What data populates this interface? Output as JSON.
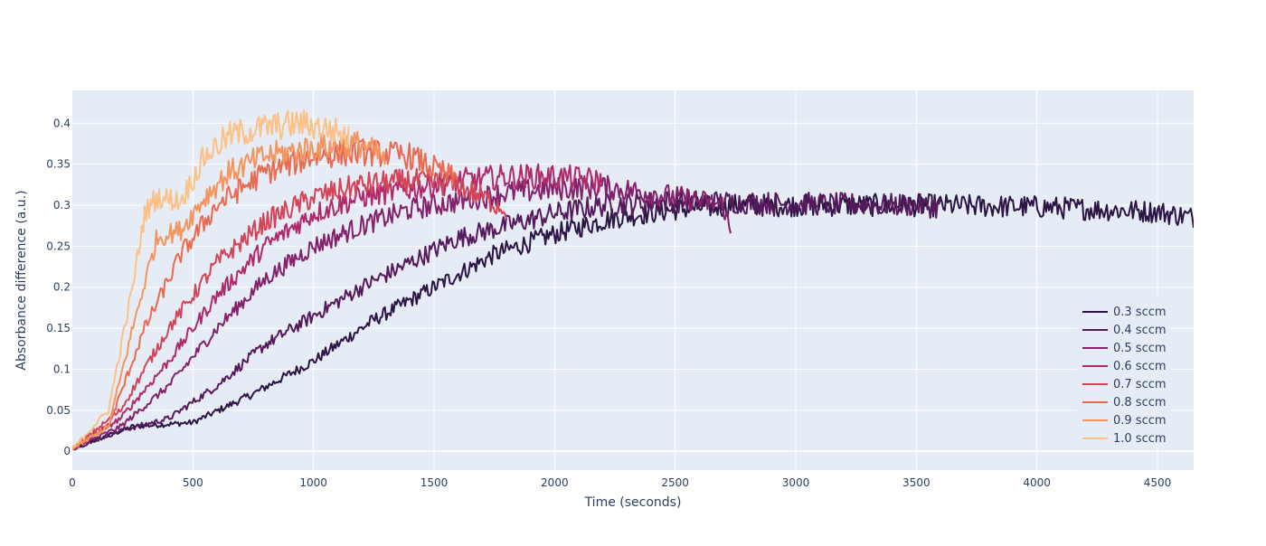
{
  "chart_data": {
    "type": "line",
    "title": "",
    "xlabel": "Time (seconds)",
    "ylabel": "Absorbance difference (a.u.)",
    "xlim": [
      0,
      4650
    ],
    "ylim": [
      -0.023,
      0.44
    ],
    "xticks": [
      0,
      500,
      1000,
      1500,
      2000,
      2500,
      3000,
      3500,
      4000,
      4500
    ],
    "yticks": [
      0,
      0.05,
      0.1,
      0.15,
      0.2,
      0.25,
      0.3,
      0.35,
      0.4
    ],
    "grid": true,
    "legend_position": "bottom-right",
    "background": "#e5ecf6",
    "series": [
      {
        "name": "0.3 sccm",
        "color": "#2c1444",
        "x": [
          0,
          250,
          500,
          750,
          1000,
          1250,
          1500,
          1750,
          2000,
          2250,
          2500,
          2750,
          3000,
          3500,
          4000,
          4500,
          4650
        ],
        "y": [
          0.003,
          0.03,
          0.035,
          0.07,
          0.11,
          0.16,
          0.2,
          0.24,
          0.265,
          0.285,
          0.295,
          0.3,
          0.3,
          0.3,
          0.298,
          0.292,
          0.285
        ]
      },
      {
        "name": "0.4 sccm",
        "color": "#561a5c",
        "x": [
          0,
          200,
          400,
          600,
          800,
          1000,
          1200,
          1400,
          1600,
          1800,
          2000,
          2200,
          2500,
          3000,
          3500,
          3600
        ],
        "y": [
          0.003,
          0.025,
          0.04,
          0.08,
          0.13,
          0.165,
          0.2,
          0.23,
          0.26,
          0.275,
          0.29,
          0.3,
          0.305,
          0.302,
          0.3,
          0.297
        ]
      },
      {
        "name": "0.5 sccm",
        "color": "#84216a",
        "x": [
          0,
          200,
          400,
          600,
          800,
          1000,
          1200,
          1400,
          1600,
          1800,
          2000,
          2200,
          2400,
          2700,
          2730
        ],
        "y": [
          0.003,
          0.03,
          0.08,
          0.15,
          0.21,
          0.25,
          0.275,
          0.295,
          0.305,
          0.315,
          0.32,
          0.322,
          0.315,
          0.3,
          0.265
        ]
      },
      {
        "name": "0.6 sccm",
        "color": "#b02a6b",
        "x": [
          0,
          200,
          400,
          600,
          800,
          1000,
          1200,
          1400,
          1600,
          1800,
          2000,
          2200
        ],
        "y": [
          0.003,
          0.04,
          0.11,
          0.19,
          0.25,
          0.29,
          0.31,
          0.32,
          0.33,
          0.335,
          0.335,
          0.33
        ]
      },
      {
        "name": "0.7 sccm",
        "color": "#d34458",
        "x": [
          0,
          200,
          400,
          600,
          800,
          1000,
          1200,
          1400,
          1600,
          1800
        ],
        "y": [
          0.003,
          0.05,
          0.15,
          0.23,
          0.28,
          0.31,
          0.325,
          0.33,
          0.325,
          0.295
        ]
      },
      {
        "name": "0.8 sccm",
        "color": "#e86a50",
        "x": [
          0,
          150,
          300,
          450,
          600,
          800,
          1000,
          1200,
          1400,
          1600
        ],
        "y": [
          0.003,
          0.03,
          0.15,
          0.24,
          0.3,
          0.34,
          0.36,
          0.365,
          0.36,
          0.33
        ]
      },
      {
        "name": "0.9 sccm",
        "color": "#f4955d",
        "x": [
          0,
          150,
          250,
          350,
          450,
          550,
          650,
          800,
          1000,
          1200,
          1300
        ],
        "y": [
          0.003,
          0.03,
          0.15,
          0.26,
          0.27,
          0.31,
          0.34,
          0.36,
          0.37,
          0.375,
          0.355
        ]
      },
      {
        "name": "1.0 sccm",
        "color": "#fbc186",
        "x": [
          0,
          150,
          250,
          300,
          350,
          450,
          550,
          650,
          800,
          950,
          1100,
          1150
        ],
        "y": [
          0.003,
          0.05,
          0.2,
          0.29,
          0.31,
          0.305,
          0.36,
          0.385,
          0.395,
          0.4,
          0.39,
          0.38
        ]
      }
    ]
  }
}
